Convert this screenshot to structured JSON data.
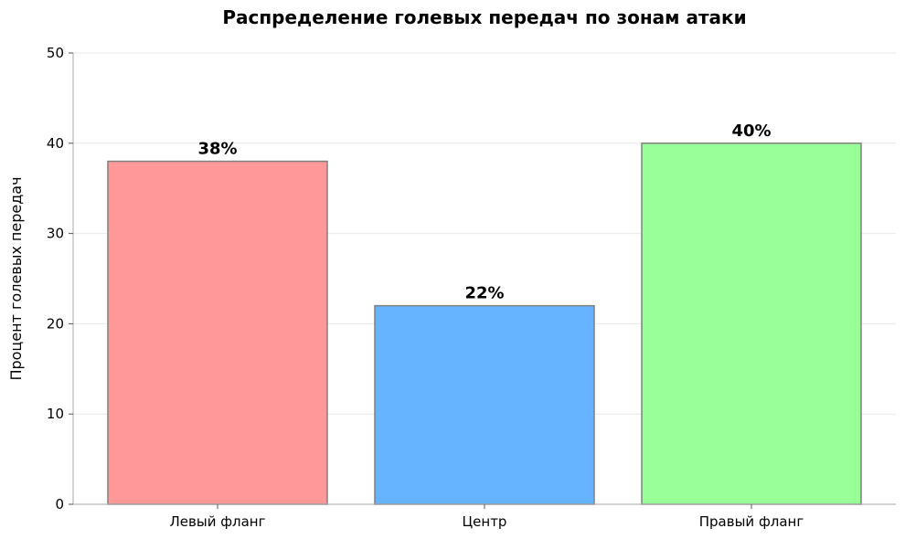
{
  "chart_data": {
    "type": "bar",
    "title": "Распределение голевых передач по зонам атаки",
    "xlabel": "",
    "ylabel": "Процент голевых передач",
    "ylim": [
      0,
      50
    ],
    "yticks": [
      0,
      10,
      20,
      30,
      40,
      50
    ],
    "grid": "horizontal",
    "categories": [
      "Левый фланг",
      "Центр",
      "Правый фланг"
    ],
    "values": [
      38,
      22,
      40
    ],
    "data_labels": [
      "38%",
      "22%",
      "40%"
    ],
    "colors": [
      "#ff9999",
      "#66b3ff",
      "#99ff99"
    ],
    "edge_color": "#808080"
  }
}
